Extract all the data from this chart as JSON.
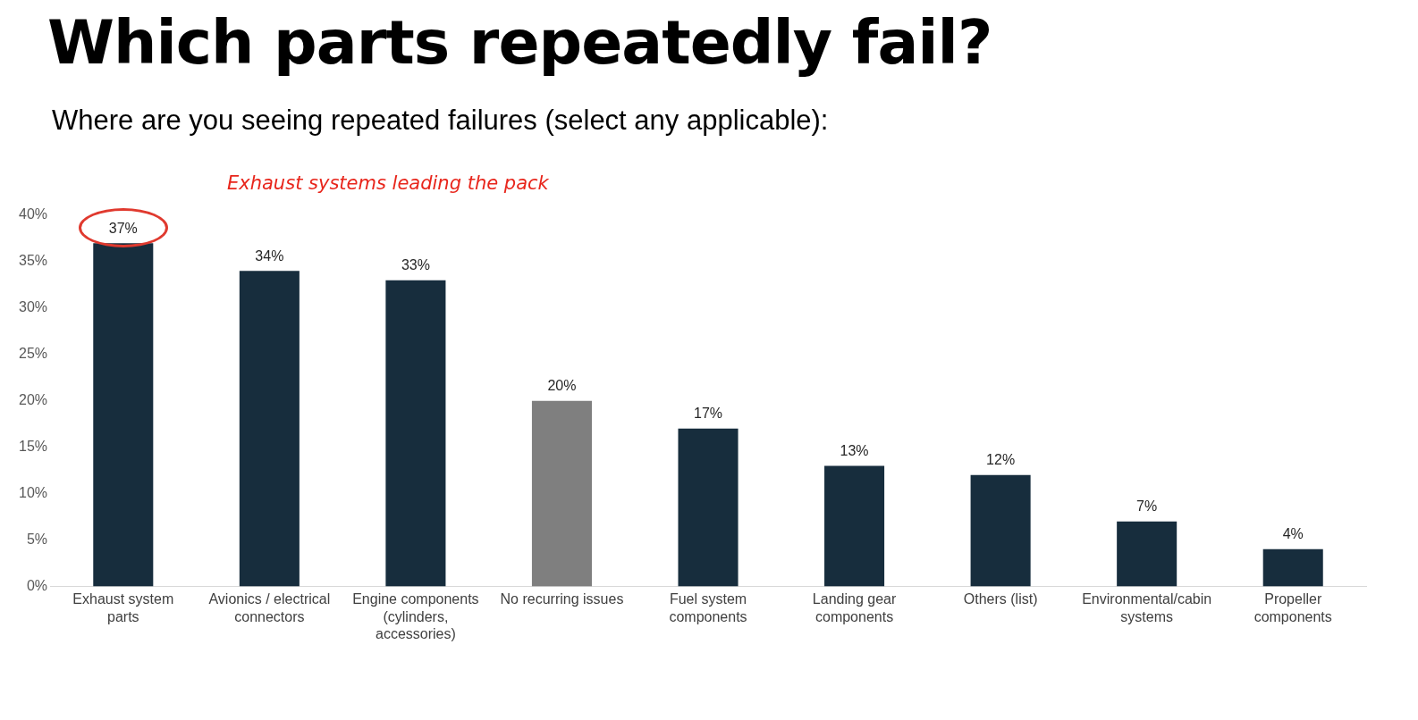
{
  "chart_data": {
    "type": "bar",
    "title": "Which parts repeatedly fail?",
    "subtitle": "Where are you seeing repeated failures (select any applicable):",
    "annotations": [
      "Exhaust systems leading the pack"
    ],
    "categories": [
      "Exhaust system parts",
      "Avionics / electrical connectors",
      "Engine components (cylinders, accessories)",
      "No recurring issues",
      "Fuel system components",
      "Landing gear components",
      "Others (list)",
      "Environmental/cabin systems",
      "Propeller components"
    ],
    "values": [
      37,
      34,
      33,
      20,
      17,
      13,
      12,
      7,
      4
    ],
    "value_labels": [
      "37%",
      "34%",
      "33%",
      "20%",
      "17%",
      "13%",
      "12%",
      "7%",
      "4%"
    ],
    "colors": [
      "#172d3d",
      "#172d3d",
      "#172d3d",
      "#7f7f7f",
      "#172d3d",
      "#172d3d",
      "#172d3d",
      "#172d3d",
      "#172d3d"
    ],
    "ylim": [
      0,
      40
    ],
    "yticks": [
      {
        "value": 0,
        "label": "0%"
      },
      {
        "value": 5,
        "label": "5%"
      },
      {
        "value": 10,
        "label": "10%"
      },
      {
        "value": 15,
        "label": "15%"
      },
      {
        "value": 20,
        "label": "20%"
      },
      {
        "value": 25,
        "label": "25%"
      },
      {
        "value": 30,
        "label": "30%"
      },
      {
        "value": 35,
        "label": "35%"
      },
      {
        "value": 40,
        "label": "40%"
      }
    ],
    "grid": false,
    "legend": false
  }
}
